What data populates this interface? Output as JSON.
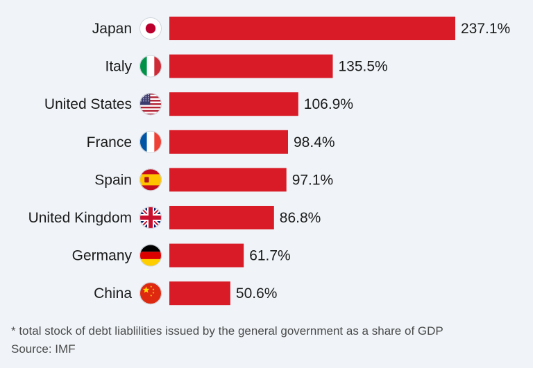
{
  "chart_data": {
    "type": "bar",
    "orientation": "horizontal",
    "categories": [
      "Japan",
      "Italy",
      "United States",
      "France",
      "Spain",
      "United Kingdom",
      "Germany",
      "China"
    ],
    "values": [
      237.1,
      135.5,
      106.9,
      98.4,
      97.1,
      86.8,
      61.7,
      50.6
    ],
    "value_labels": [
      "237.1%",
      "135.5%",
      "106.9%",
      "98.4%",
      "97.1%",
      "86.8%",
      "61.7%",
      "50.6%"
    ],
    "flag_icons": [
      "japan-flag-icon",
      "italy-flag-icon",
      "united-states-flag-icon",
      "france-flag-icon",
      "spain-flag-icon",
      "united-kingdom-flag-icon",
      "germany-flag-icon",
      "china-flag-icon"
    ],
    "bar_color": "#d81b26",
    "grid": false,
    "legend": "none"
  },
  "footnote": {
    "note": "* total stock of debt liablilities issued by the general government as a share of GDP",
    "source": "Source: IMF"
  },
  "colors": {
    "background": "#f0f4f8",
    "bar": "#d81b26",
    "text": "#1a1a1a"
  }
}
